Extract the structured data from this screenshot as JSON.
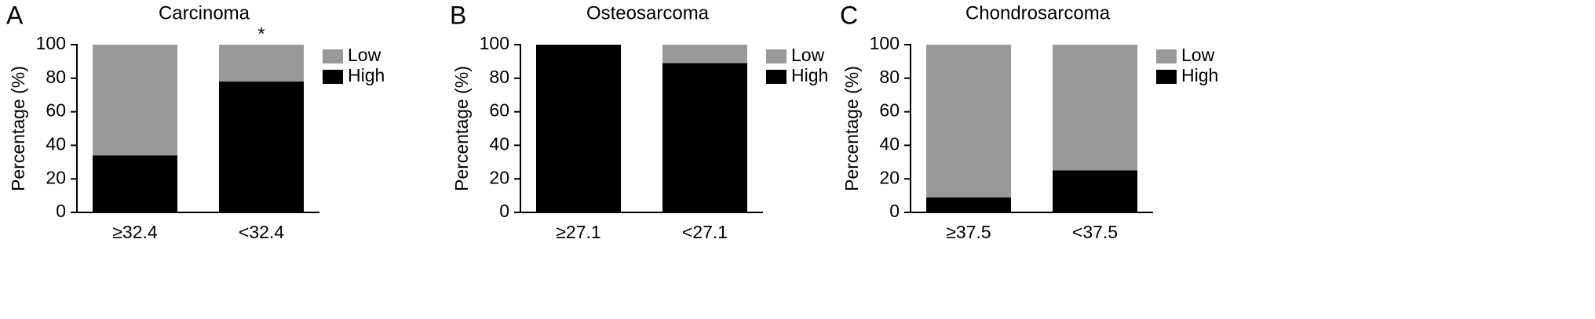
{
  "chart_data": [
    {
      "type": "bar",
      "stacked": true,
      "panel_label": "A",
      "title": "Carcinoma",
      "ylabel": "Percentage (%)",
      "categories": [
        "≥32.4",
        "<32.4"
      ],
      "series": [
        {
          "name": "Low",
          "color": "#999999",
          "values": [
            66,
            22
          ]
        },
        {
          "name": "High",
          "color": "#000000",
          "values": [
            34,
            78
          ]
        }
      ],
      "ylim": [
        0,
        100
      ],
      "yticks": [
        0,
        20,
        40,
        60,
        80,
        100
      ],
      "legend": "upper right",
      "annotations": [
        {
          "text": "*",
          "x": "<32.4"
        }
      ]
    },
    {
      "type": "bar",
      "stacked": true,
      "panel_label": "B",
      "title": "Osteosarcoma",
      "ylabel": "Percentage (%)",
      "categories": [
        "≥27.1",
        "<27.1"
      ],
      "series": [
        {
          "name": "Low",
          "color": "#999999",
          "values": [
            0,
            11
          ]
        },
        {
          "name": "High",
          "color": "#000000",
          "values": [
            100,
            89
          ]
        }
      ],
      "ylim": [
        0,
        100
      ],
      "yticks": [
        0,
        20,
        40,
        60,
        80,
        100
      ],
      "legend": "upper right"
    },
    {
      "type": "bar",
      "stacked": true,
      "panel_label": "C",
      "title": "Chondrosarcoma",
      "ylabel": "Percentage (%)",
      "categories": [
        "≥37.5",
        "<37.5"
      ],
      "series": [
        {
          "name": "Low",
          "color": "#999999",
          "values": [
            91,
            75
          ]
        },
        {
          "name": "High",
          "color": "#000000",
          "values": [
            9,
            25
          ]
        }
      ],
      "ylim": [
        0,
        100
      ],
      "yticks": [
        0,
        20,
        40,
        60,
        80,
        100
      ],
      "legend": "upper right"
    }
  ]
}
